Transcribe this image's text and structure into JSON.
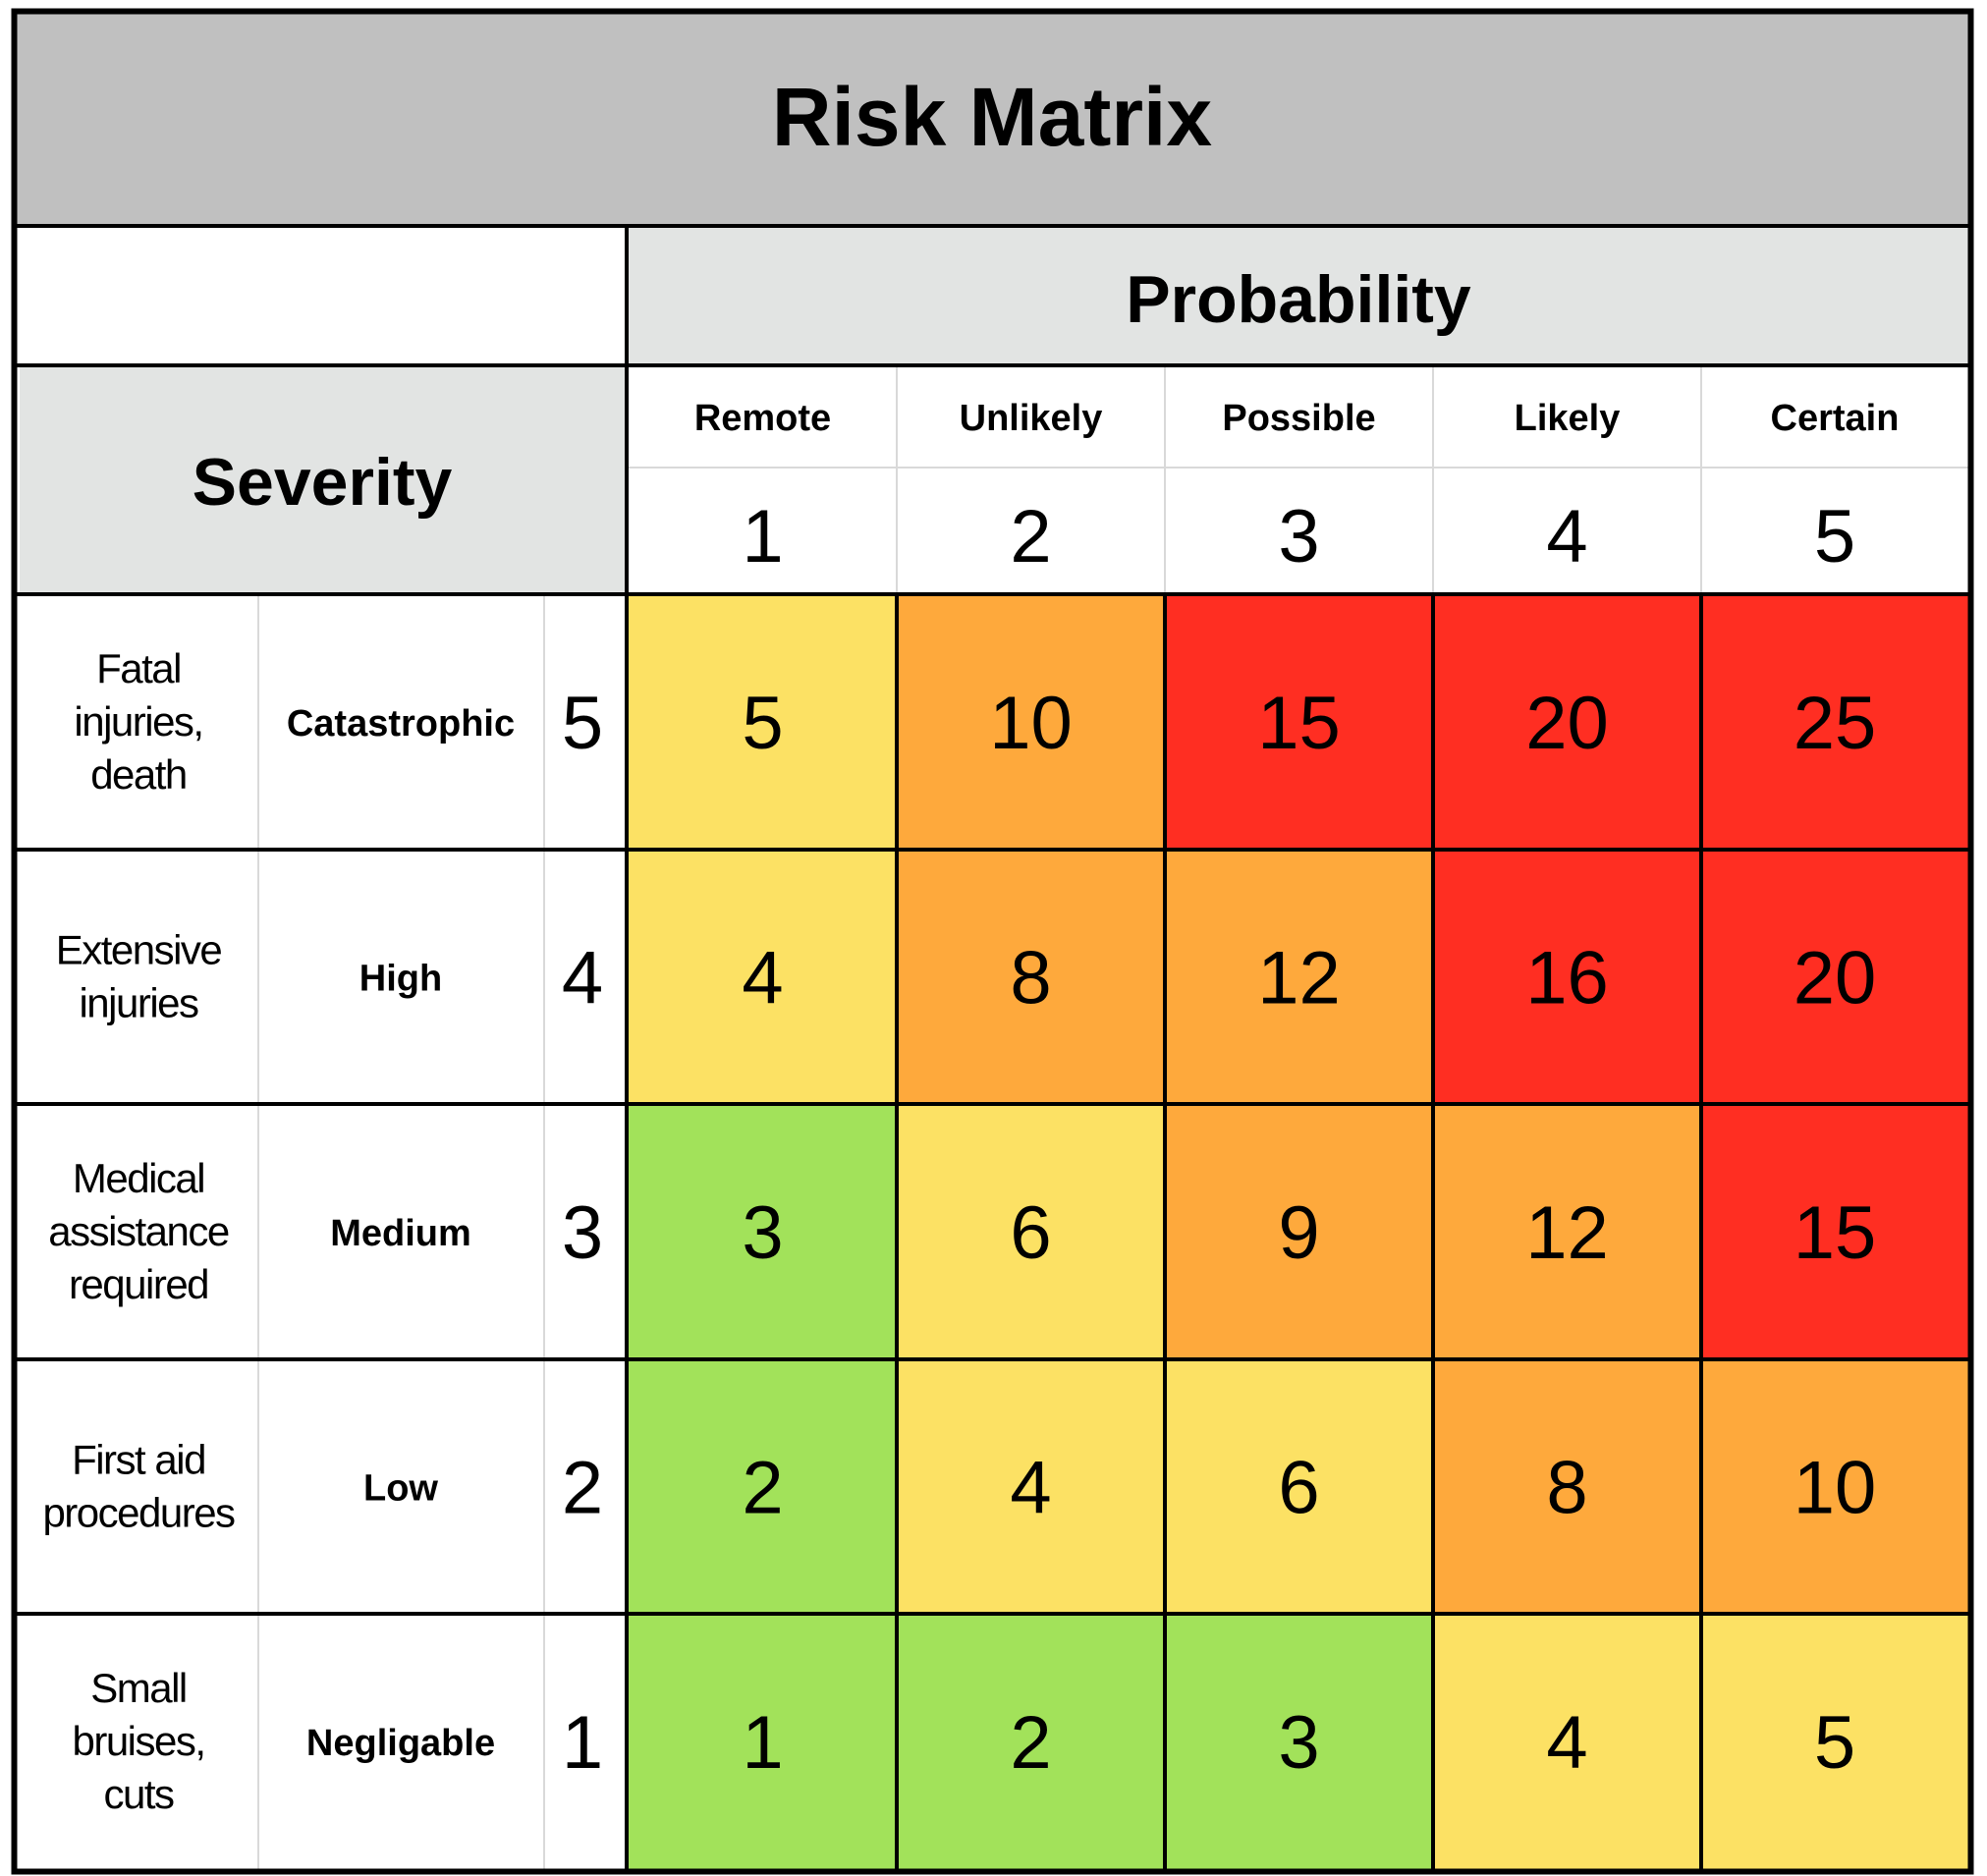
{
  "title": "Risk Matrix",
  "probability": {
    "header": "Probability",
    "levels": [
      {
        "label": "Remote",
        "value": "1"
      },
      {
        "label": "Unlikely",
        "value": "2"
      },
      {
        "label": "Possible",
        "value": "3"
      },
      {
        "label": "Likely",
        "value": "4"
      },
      {
        "label": "Certain",
        "value": "5"
      }
    ]
  },
  "severity": {
    "header": "Severity",
    "levels": [
      {
        "description": [
          "Fatal",
          "injuries,",
          "death"
        ],
        "label": "Catastrophic",
        "value": "5"
      },
      {
        "description": [
          "Extensive",
          "injuries"
        ],
        "label": "High",
        "value": "4"
      },
      {
        "description": [
          "Medical",
          "assistance",
          "required"
        ],
        "label": "Medium",
        "value": "3"
      },
      {
        "description": [
          "First aid",
          "procedures"
        ],
        "label": "Low",
        "value": "2"
      },
      {
        "description": [
          "Small",
          "bruises,",
          "cuts"
        ],
        "label": "Negligable",
        "value": "1"
      }
    ]
  },
  "matrix": [
    [
      "5",
      "10",
      "15",
      "20",
      "25"
    ],
    [
      "4",
      "8",
      "12",
      "16",
      "20"
    ],
    [
      "3",
      "6",
      "9",
      "12",
      "15"
    ],
    [
      "2",
      "4",
      "6",
      "8",
      "10"
    ],
    [
      "1",
      "2",
      "3",
      "4",
      "5"
    ]
  ],
  "colors": {
    "title_bg": "#c0c0c0",
    "header_bg": "#e2e4e3",
    "green": "#a2e25a",
    "yellow": "#fce164",
    "orange": "#fea93c",
    "red": "#ff2e22",
    "border": "#000000",
    "light_border": "#d9d9d9"
  }
}
